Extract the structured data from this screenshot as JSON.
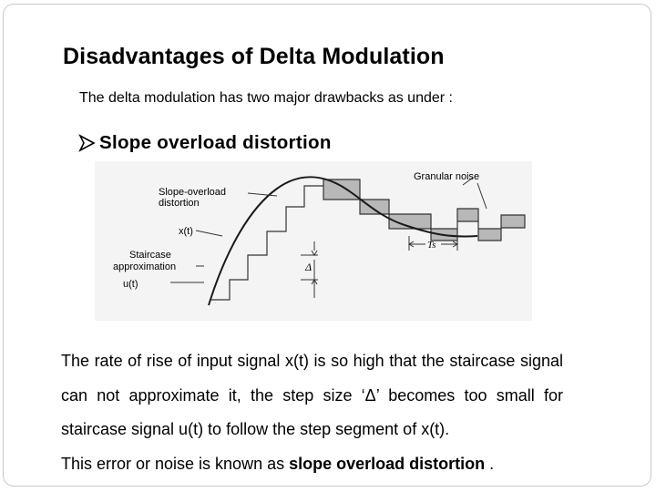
{
  "slide": {
    "title": "Disadvantages of Delta Modulation",
    "intro": "The delta modulation has two major drawbacks as under :",
    "bullet": {
      "icon": "arrow-bullet-icon",
      "text": "Slope overload distortion"
    },
    "figure": {
      "labels": {
        "slope_overload": [
          "Slope-overload",
          "distortion"
        ],
        "x_of_t": "x(t)",
        "staircase": [
          "Staircase",
          "approximation"
        ],
        "u_of_t": "u(t)",
        "granular": "Granular noise",
        "delta": "Δ",
        "ts": "Ts"
      },
      "colors": {
        "stairs_fill": "#b8b8b8",
        "curve": "#1a1a1a"
      }
    },
    "paragraph": {
      "lines": [
        "The rate of rise of input signal x(t) is so high that the staircase",
        "signal can not approximate it, the step size ‘Δ’ becomes too",
        "small for staircase signal u(t) to follow the step segment of x(t)."
      ],
      "last_prefix": "This error or noise is known as ",
      "last_bold": "slope overload distortion",
      "last_suffix": " ."
    }
  }
}
